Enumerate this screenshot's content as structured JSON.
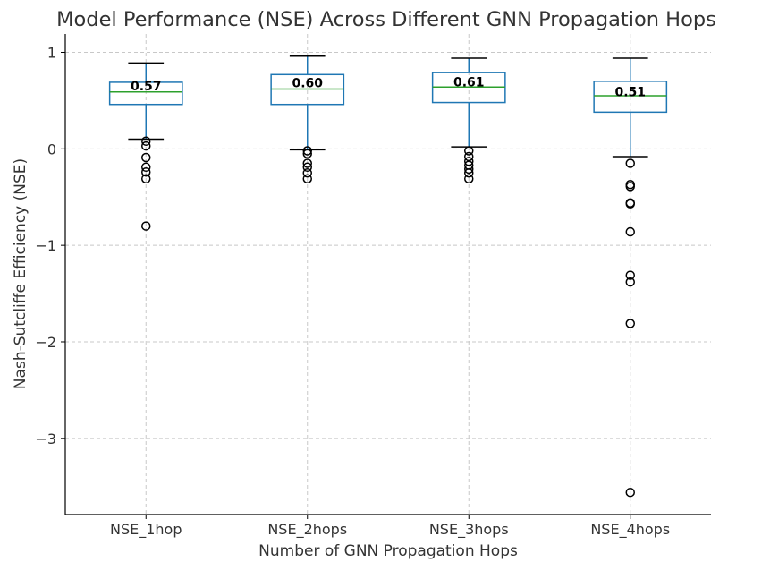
{
  "chart_data": {
    "type": "box",
    "title": "Model Performance (NSE) Across Different GNN Propagation Hops",
    "x_label": "Number of GNN Propagation Hops",
    "y_label": "Nash-Sutcliffe Efficiency (NSE)",
    "categories": [
      "NSE_1hop",
      "NSE_2hops",
      "NSE_3hops",
      "NSE_4hops"
    ],
    "boxes": [
      {
        "whislo": 0.1,
        "q1": 0.46,
        "med": 0.59,
        "q3": 0.69,
        "whishi": 0.89,
        "fliers": [
          0.08,
          0.03,
          -0.09,
          -0.19,
          -0.24,
          -0.31,
          -0.8
        ]
      },
      {
        "whislo": -0.01,
        "q1": 0.46,
        "med": 0.62,
        "q3": 0.77,
        "whishi": 0.96,
        "fliers": [
          -0.02,
          -0.05,
          -0.15,
          -0.19,
          -0.25,
          -0.31
        ]
      },
      {
        "whislo": 0.02,
        "q1": 0.48,
        "med": 0.64,
        "q3": 0.79,
        "whishi": 0.94,
        "fliers": [
          -0.02,
          -0.08,
          -0.13,
          -0.17,
          -0.21,
          -0.25,
          -0.31
        ]
      },
      {
        "whislo": -0.08,
        "q1": 0.38,
        "med": 0.55,
        "q3": 0.7,
        "whishi": 0.94,
        "fliers": [
          -0.15,
          -0.37,
          -0.39,
          -0.56,
          -0.57,
          -0.86,
          -1.31,
          -1.38,
          -1.81,
          -3.56
        ]
      }
    ],
    "means": [
      0.57,
      0.6,
      0.61,
      0.51
    ],
    "value_labels": [
      "0.57",
      "0.60",
      "0.61",
      "0.51"
    ],
    "box_color": "#1f77b4",
    "median_color": "#2ca02c",
    "flier_color": "#000000",
    "ylim": [
      -3.79,
      1.19
    ],
    "yticks": [
      {
        "value": -3,
        "label": "−3"
      },
      {
        "value": -2,
        "label": "−2"
      },
      {
        "value": -1,
        "label": "−1"
      },
      0,
      1
    ],
    "grid": true
  }
}
